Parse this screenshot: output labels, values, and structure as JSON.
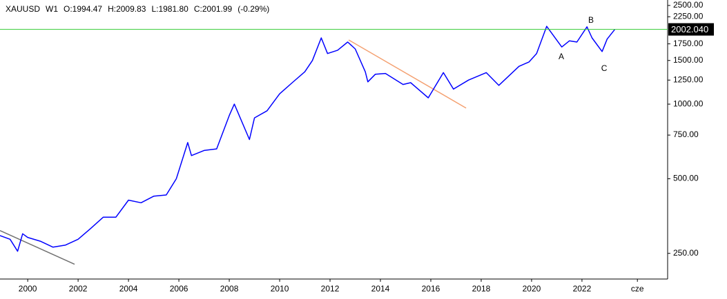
{
  "chart_data": {
    "type": "line",
    "symbol": "XAUUSD",
    "timeframe": "W1",
    "ohlc": [
      "O:1994.47",
      "H:2009.83",
      "L:1981.80",
      "C:2001.99",
      "(-0.29%)"
    ],
    "color": "#0000ff",
    "log_scale": true,
    "x": [
      1998.9,
      1999.3,
      1999.6,
      1999.8,
      2000.0,
      2000.5,
      2001.0,
      2001.5,
      2002.0,
      2002.5,
      2003.0,
      2003.5,
      2004.0,
      2004.5,
      2005.0,
      2005.5,
      2005.9,
      2006.35,
      2006.5,
      2007.0,
      2007.5,
      2008.0,
      2008.2,
      2008.8,
      2009.0,
      2009.5,
      2010.0,
      2010.5,
      2011.0,
      2011.3,
      2011.65,
      2011.9,
      2012.3,
      2012.7,
      2013.0,
      2013.4,
      2013.5,
      2013.8,
      2014.2,
      2014.9,
      2015.2,
      2015.9,
      2016.5,
      2016.9,
      2017.5,
      2018.2,
      2018.7,
      2019.5,
      2019.9,
      2020.2,
      2020.6,
      2021.2,
      2021.5,
      2021.8,
      2022.2,
      2022.4,
      2022.8,
      2023.0,
      2023.3
    ],
    "values": [
      295,
      285,
      255,
      300,
      290,
      280,
      265,
      270,
      285,
      315,
      350,
      350,
      410,
      400,
      425,
      430,
      500,
      700,
      620,
      650,
      660,
      900,
      1000,
      720,
      880,
      940,
      1100,
      1220,
      1350,
      1500,
      1850,
      1600,
      1650,
      1780,
      1670,
      1350,
      1230,
      1320,
      1330,
      1200,
      1220,
      1060,
      1340,
      1150,
      1250,
      1340,
      1190,
      1420,
      1480,
      1600,
      2060,
      1700,
      1800,
      1780,
      2050,
      1850,
      1630,
      1830,
      2000
    ],
    "xlim": [
      1998.9,
      2025.4
    ],
    "ylim": [
      197,
      2630
    ],
    "xticks": [
      2000,
      2002,
      2004,
      2006,
      2008,
      2010,
      2012,
      2014,
      2016,
      2018,
      2020,
      2022,
      {
        "value": 2024.2,
        "label": "cze"
      }
    ],
    "yticks": [
      {
        "value": 250,
        "label": "250.00"
      },
      {
        "value": 500,
        "label": "500.00"
      },
      {
        "value": 750,
        "label": "750.00"
      },
      {
        "value": 1000,
        "label": "1000.00"
      },
      {
        "value": 1250,
        "label": "1250.00"
      },
      {
        "value": 1500,
        "label": "1500.00"
      },
      {
        "value": 1750,
        "label": "1750.00"
      },
      {
        "value": 2250,
        "label": "2250.00"
      },
      {
        "value": 2500,
        "label": "2500.00"
      }
    ],
    "last_price": {
      "value": 2002.04,
      "label": "2002.040",
      "color": "#33cc33"
    },
    "trendlines": [
      {
        "x": [
          1998.9,
          2001.86
        ],
        "y": [
          309,
          226
        ],
        "color": "#707070"
      },
      {
        "x": [
          2012.74,
          2017.4
        ],
        "y": [
          1815,
          964
        ],
        "color": "#f4a070"
      }
    ],
    "annotations": [
      {
        "text": "A",
        "x": 2021.18,
        "y": 1548
      },
      {
        "text": "B",
        "x": 2022.36,
        "y": 2173
      },
      {
        "text": "C",
        "x": 2022.88,
        "y": 1387
      }
    ]
  }
}
